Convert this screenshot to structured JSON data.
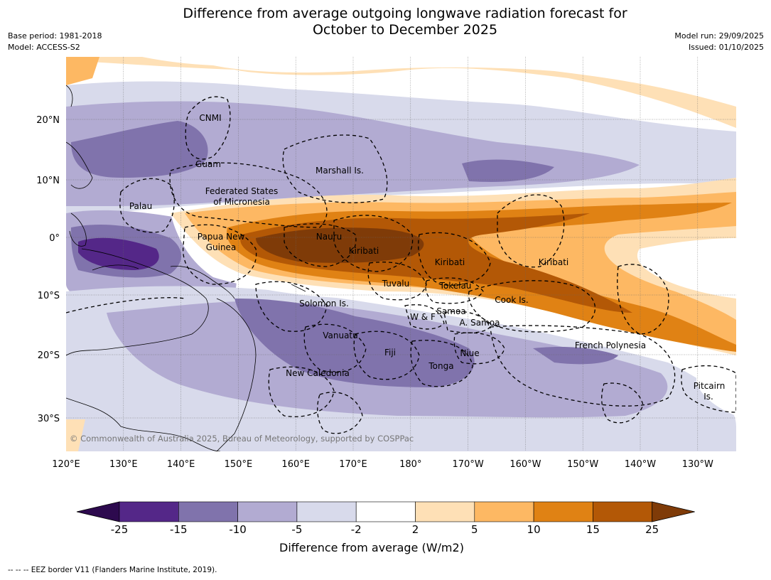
{
  "title_line1": "Difference from average outgoing longwave radiation forecast for",
  "title_line2": "October to December 2025",
  "meta_left": [
    "Base period: 1981-2018",
    "Model: ACCESS-S2"
  ],
  "meta_right": [
    "Model run: 29/09/2025",
    "Issued: 01/10/2025"
  ],
  "copyright": "© Commonwealth of Australia 2025, Bureau of Meteorology, supported by COSPPac",
  "lon_ticks": [
    "120°E",
    "130°E",
    "140°E",
    "150°E",
    "160°E",
    "170°E",
    "180°",
    "170°W",
    "160°W",
    "150°W",
    "140°W",
    "130°W"
  ],
  "lat_ticks": [
    "20°N",
    "10°N",
    "0°",
    "10°S",
    "20°S",
    "30°S"
  ],
  "region_labels": [
    "CNMI",
    "Guam",
    "Marshall Is.",
    "Palau",
    "Federated States",
    "of Micronesia",
    "Papua New",
    "Guinea",
    "Nauru",
    "Kiribati",
    "Kiribati",
    "Kiribati",
    "Tuvalu",
    "Tokelau",
    "Cook Is.",
    "Solomon Is.",
    "W & F",
    "Samoa",
    "A. Samoa",
    "Vanuatu",
    "Fiji",
    "Niue",
    "Tonga",
    "French Polynesia",
    "New Caledonia",
    "Pitcairn",
    "Is."
  ],
  "colorbar": {
    "title": "Difference from average (W/m2)",
    "labels": [
      "-25",
      "-15",
      "-10",
      "-5",
      "-2",
      "2",
      "5",
      "10",
      "15",
      "25"
    ],
    "colors": [
      "#2d0a4e",
      "#542788",
      "#8073ac",
      "#b2abd2",
      "#d8daeb",
      "#ffffff",
      "#fee0b6",
      "#fdb863",
      "#e08214",
      "#b35806",
      "#7f3b08"
    ]
  },
  "footer": "--  --  -- EEZ border V11 (Flanders Marine Institute, 2019)."
}
